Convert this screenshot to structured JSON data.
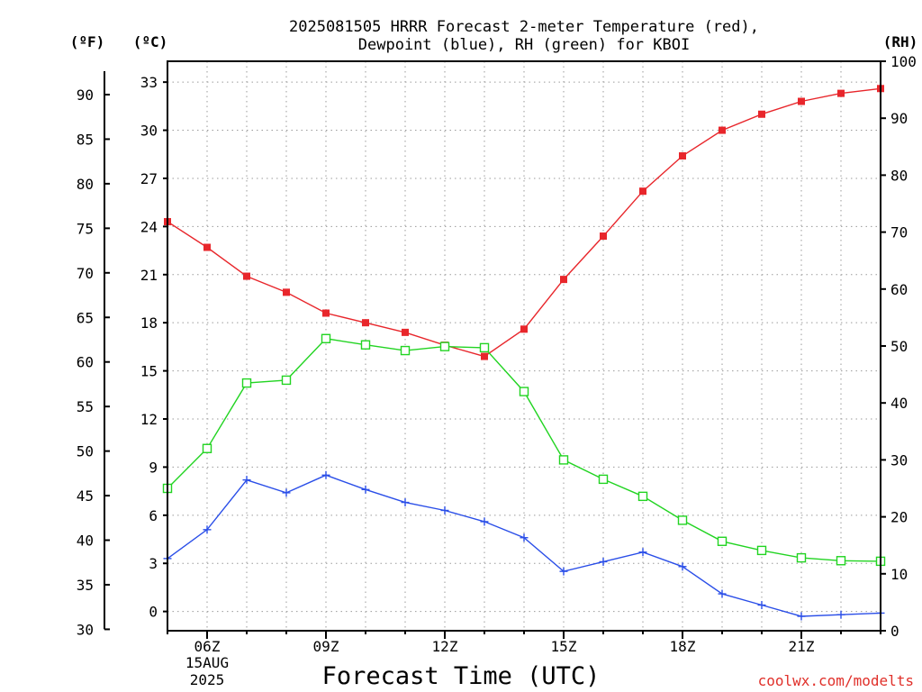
{
  "chart_data": {
    "type": "line",
    "title_line1": "2025081505 HRRR Forecast 2-meter Temperature (red),",
    "title_line2": "Dewpoint (blue), RH (green) for KBOI",
    "xlabel": "Forecast Time (UTC)",
    "credit": "coolwx.com/modelts",
    "units": {
      "left_f": "(ºF)",
      "left_c": "(ºC)",
      "right_rh": "(RH)"
    },
    "x_hours": [
      5,
      6,
      7,
      8,
      9,
      10,
      11,
      12,
      13,
      14,
      15,
      16,
      17,
      18,
      19,
      20,
      21,
      22,
      23
    ],
    "x_tick_labels": [
      "06Z",
      "09Z",
      "12Z",
      "15Z",
      "18Z",
      "21Z"
    ],
    "x_tick_hours": [
      6,
      9,
      12,
      15,
      18,
      21
    ],
    "date_label_line1": "15AUG",
    "date_label_line2": "2025",
    "xlim": [
      5,
      23
    ],
    "celsius_axis": {
      "ylim": [
        -1.2,
        34.3
      ],
      "ticks": [
        0,
        3,
        6,
        9,
        12,
        15,
        18,
        21,
        24,
        27,
        30,
        33
      ]
    },
    "fahrenheit_axis": {
      "ticks": [
        30,
        35,
        40,
        45,
        50,
        55,
        60,
        65,
        70,
        75,
        80,
        85,
        90
      ]
    },
    "rh_axis": {
      "ylim": [
        0,
        100
      ],
      "ticks": [
        0,
        10,
        20,
        30,
        40,
        50,
        60,
        70,
        80,
        90,
        100
      ]
    },
    "series": [
      {
        "name": "Temperature",
        "axis": "celsius",
        "color": "#e8262b",
        "marker": "filled-square",
        "values": [
          24.3,
          22.7,
          20.9,
          19.9,
          18.6,
          18.0,
          17.4,
          16.6,
          15.9,
          17.6,
          20.7,
          23.4,
          26.2,
          28.4,
          30.0,
          31.0,
          31.8,
          32.3,
          32.6
        ]
      },
      {
        "name": "Dewpoint",
        "axis": "celsius",
        "color": "#2a4ee8",
        "marker": "plus",
        "values": [
          3.3,
          5.1,
          8.2,
          7.4,
          8.5,
          7.6,
          6.8,
          6.3,
          5.6,
          4.6,
          2.5,
          3.1,
          3.7,
          2.8,
          1.1,
          0.4,
          -0.3,
          -0.2,
          -0.1
        ]
      },
      {
        "name": "RH",
        "axis": "rh",
        "color": "#22d422",
        "marker": "open-square",
        "values": [
          25,
          32,
          43.5,
          44,
          51.3,
          50.2,
          49.2,
          49.9,
          49.7,
          42,
          30,
          26.6,
          23.6,
          19.4,
          15.7,
          14.1,
          12.8,
          12.3,
          12.2
        ]
      }
    ]
  }
}
